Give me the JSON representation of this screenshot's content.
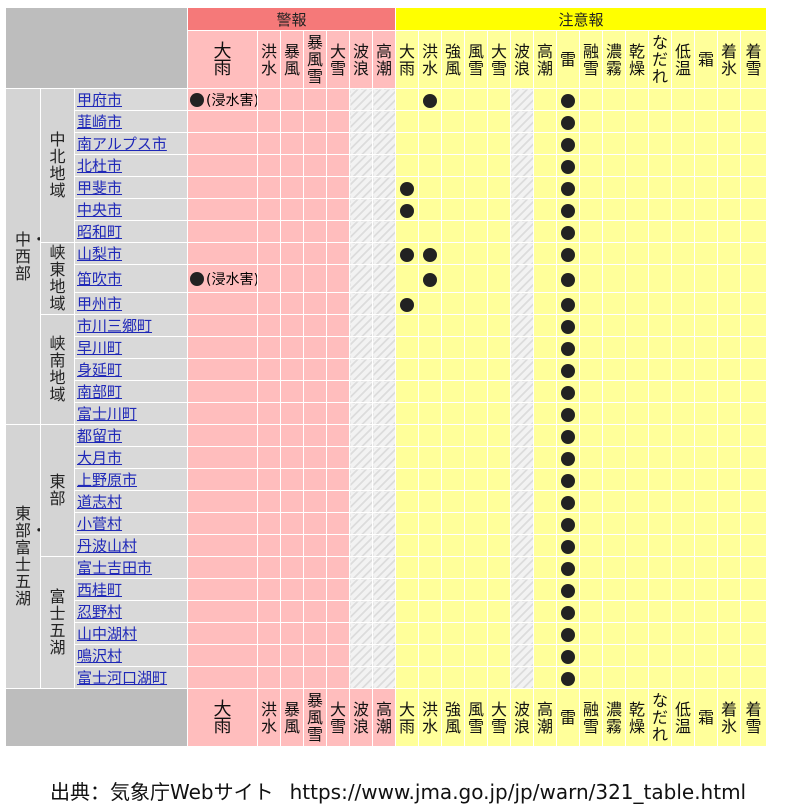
{
  "header": {
    "group_keiho": "警報",
    "group_chuiho": "注意報",
    "warning_cols": [
      "大雨",
      "洪水",
      "暴風",
      "暴風雪",
      "大雪",
      "波浪",
      "高潮"
    ],
    "advisory_cols": [
      "大雨",
      "洪水",
      "強風",
      "風雪",
      "大雪",
      "波浪",
      "高潮",
      "雷",
      "融雪",
      "濃霧",
      "乾燥",
      "なだれ",
      "低温",
      "霜",
      "着氷",
      "着雪"
    ]
  },
  "mark_note": "(浸水害)",
  "regions": [
    {
      "name": "中・西部",
      "subregions": [
        {
          "name": "中北地域",
          "municipalities": [
            "甲府市",
            "韮崎市",
            "南アルプス市",
            "北杜市",
            "甲斐市",
            "中央市",
            "昭和町"
          ]
        },
        {
          "name": "峡東地域",
          "municipalities": [
            "山梨市",
            "笛吹市",
            "甲州市"
          ]
        },
        {
          "name": "峡南地域",
          "municipalities": [
            "市川三郷町",
            "早川町",
            "身延町",
            "南部町",
            "富士川町"
          ]
        }
      ]
    },
    {
      "name": "東部・富士五湖",
      "subregions": [
        {
          "name": "東部",
          "municipalities": [
            "都留市",
            "大月市",
            "上野原市",
            "道志村",
            "小菅村",
            "丹波山村"
          ]
        },
        {
          "name": "富士五湖",
          "municipalities": [
            "富士吉田市",
            "西桂町",
            "忍野村",
            "山中湖村",
            "鳴沢村",
            "富士河口湖町"
          ]
        }
      ]
    }
  ],
  "statuses": {
    "甲府市": {
      "warning_heavy_rain": true,
      "advisories": [
        "洪水",
        "雷"
      ]
    },
    "韮崎市": {
      "advisories": [
        "雷"
      ]
    },
    "南アルプス市": {
      "advisories": [
        "雷"
      ]
    },
    "北杜市": {
      "advisories": [
        "雷"
      ]
    },
    "甲斐市": {
      "advisories": [
        "大雨",
        "雷"
      ]
    },
    "中央市": {
      "advisories": [
        "大雨",
        "雷"
      ]
    },
    "昭和町": {
      "advisories": [
        "雷"
      ]
    },
    "山梨市": {
      "advisories": [
        "大雨",
        "洪水",
        "雷"
      ]
    },
    "笛吹市": {
      "warning_heavy_rain": true,
      "advisories": [
        "洪水",
        "雷"
      ]
    },
    "甲州市": {
      "advisories": [
        "大雨",
        "雷"
      ]
    },
    "市川三郷町": {
      "advisories": [
        "雷"
      ]
    },
    "早川町": {
      "advisories": [
        "雷"
      ]
    },
    "身延町": {
      "advisories": [
        "雷"
      ]
    },
    "南部町": {
      "advisories": [
        "雷"
      ]
    },
    "富士川町": {
      "advisories": [
        "雷"
      ]
    },
    "都留市": {
      "advisories": [
        "雷"
      ]
    },
    "大月市": {
      "advisories": [
        "雷"
      ]
    },
    "上野原市": {
      "advisories": [
        "雷"
      ]
    },
    "道志村": {
      "advisories": [
        "雷"
      ]
    },
    "小菅村": {
      "advisories": [
        "雷"
      ]
    },
    "丹波山村": {
      "advisories": [
        "雷"
      ]
    },
    "富士吉田市": {
      "advisories": [
        "雷"
      ]
    },
    "西桂町": {
      "advisories": [
        "雷"
      ]
    },
    "忍野村": {
      "advisories": [
        "雷"
      ]
    },
    "山中湖村": {
      "advisories": [
        "雷"
      ]
    },
    "鳴沢村": {
      "advisories": [
        "雷"
      ]
    },
    "富士河口湖町": {
      "advisories": [
        "雷"
      ]
    }
  },
  "source": {
    "label": "出典：気象庁Webサイト",
    "url": "https://www.jma.go.jp/jp/warn/321_table.html"
  },
  "colors": {
    "warning_header": "#f57979",
    "warning_cell": "#ffbdbd",
    "advisory_header": "#ffff00",
    "advisory_cell": "#ffff9a",
    "link": "#1f28b8"
  }
}
